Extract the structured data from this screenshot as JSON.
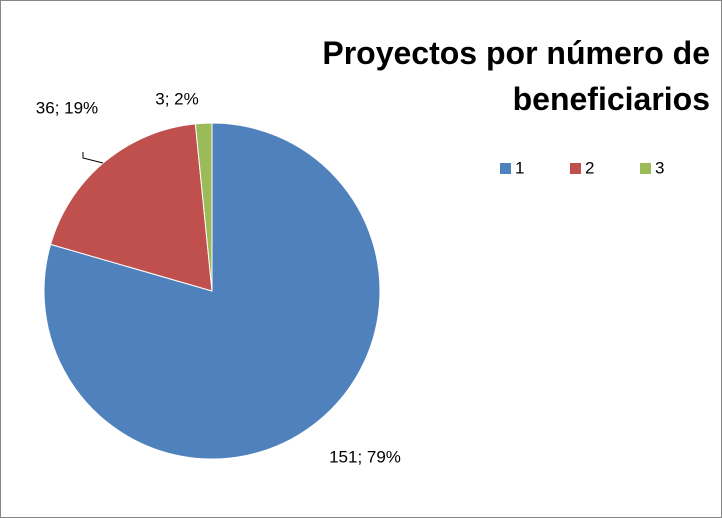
{
  "chart_data": {
    "type": "pie",
    "title": "Proyectos por número de beneficiarios",
    "categories": [
      "1",
      "2",
      "3"
    ],
    "values": [
      151,
      36,
      3
    ],
    "value_labels": [
      "151; 79%",
      "36; 19%",
      "3; 2%"
    ],
    "colors": [
      "#4f81bd",
      "#c0504d",
      "#9bbb59"
    ],
    "legend": "top-right"
  }
}
